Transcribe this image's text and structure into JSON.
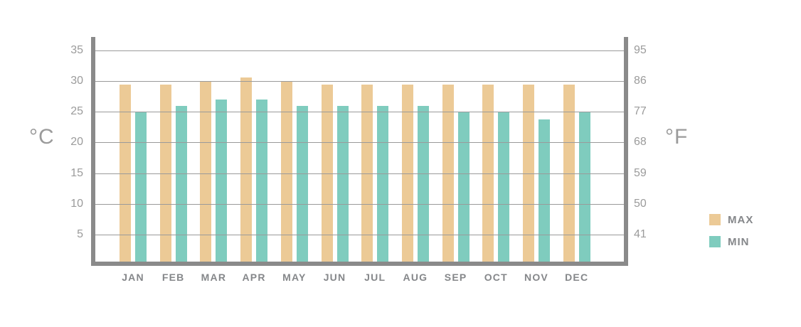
{
  "chart": {
    "left_unit": "°C",
    "right_unit": "°F"
  },
  "chart_data": {
    "type": "bar",
    "categories": [
      "JAN",
      "FEB",
      "MAR",
      "APR",
      "MAY",
      "JUN",
      "JUL",
      "AUG",
      "SEP",
      "OCT",
      "NOV",
      "DEC"
    ],
    "series": [
      {
        "name": "MAX",
        "color": "#ecca96",
        "values": [
          29.4,
          29.4,
          30.0,
          30.6,
          30.0,
          29.4,
          29.4,
          29.4,
          29.4,
          29.4,
          29.4,
          29.4
        ]
      },
      {
        "name": "MIN",
        "color": "#7fccbe",
        "values": [
          25.0,
          26.0,
          27.0,
          27.0,
          26.0,
          26.0,
          26.0,
          26.0,
          25.0,
          25.0,
          23.8,
          25.0
        ]
      }
    ],
    "left_axis": {
      "unit": "°C",
      "ticks": [
        35,
        30,
        25,
        20,
        15,
        10,
        5
      ]
    },
    "right_axis": {
      "unit": "°F",
      "ticks": [
        95,
        86,
        77,
        68,
        59,
        50,
        41
      ]
    },
    "ylim": [
      0,
      37.2
    ],
    "grid": true,
    "legend_position": "right",
    "colors": {
      "max_bar": "#ecca96",
      "min_bar": "#7fccbe",
      "axis": "#8a8a8a",
      "gridline": "#9a9a9a",
      "tick_text": "#9b9b9b",
      "month_text": "#85878a",
      "legend_text": "#85878a",
      "background": "#ffffff"
    }
  }
}
